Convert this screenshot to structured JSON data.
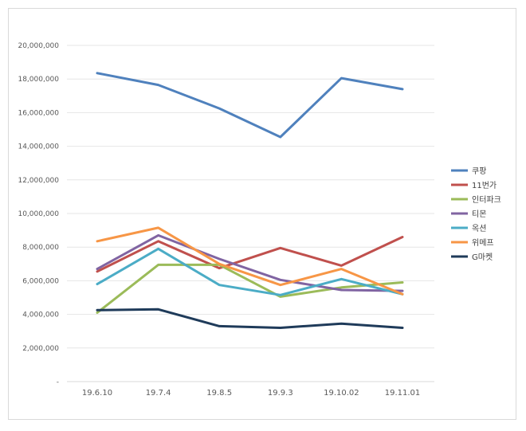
{
  "chart_data": {
    "type": "line",
    "title": "",
    "xlabel": "",
    "ylabel": "",
    "ylim": [
      0,
      20000000
    ],
    "y_ticks": [
      {
        "value": 0,
        "label": "-"
      },
      {
        "value": 2000000,
        "label": "2,000,000"
      },
      {
        "value": 4000000,
        "label": "4,000,000"
      },
      {
        "value": 6000000,
        "label": "6,000,000"
      },
      {
        "value": 8000000,
        "label": "8,000,000"
      },
      {
        "value": 10000000,
        "label": "10,000,000"
      },
      {
        "value": 12000000,
        "label": "12,000,000"
      },
      {
        "value": 14000000,
        "label": "14,000,000"
      },
      {
        "value": 16000000,
        "label": "16,000,000"
      },
      {
        "value": 18000000,
        "label": "18,000,000"
      },
      {
        "value": 20000000,
        "label": "20,000,000"
      }
    ],
    "categories": [
      "19.6.10",
      "19.7.4",
      "19.8.5",
      "19.9.3",
      "19.10.02",
      "19.11.01"
    ],
    "grid": true,
    "legend_position": "right",
    "series": [
      {
        "name": "쿠팡",
        "color": "#4f81bd",
        "values": [
          18350000,
          17650000,
          16250000,
          14550000,
          18050000,
          17400000
        ]
      },
      {
        "name": "11번가",
        "color": "#c0504d",
        "values": [
          6550000,
          8350000,
          6750000,
          7950000,
          6900000,
          8600000
        ]
      },
      {
        "name": "인터파크",
        "color": "#9bbb59",
        "values": [
          4100000,
          6950000,
          6950000,
          5050000,
          5600000,
          5900000
        ]
      },
      {
        "name": "티몬",
        "color": "#8064a2",
        "values": [
          6700000,
          8700000,
          7300000,
          6050000,
          5450000,
          5400000
        ]
      },
      {
        "name": "옥션",
        "color": "#4bacc6",
        "values": [
          5800000,
          7900000,
          5750000,
          5150000,
          6100000,
          5200000
        ]
      },
      {
        "name": "위메프",
        "color": "#f79646",
        "values": [
          8350000,
          9150000,
          7000000,
          5750000,
          6700000,
          5200000
        ]
      },
      {
        "name": "G마켓",
        "color": "#1f3b5a",
        "values": [
          4250000,
          4300000,
          3300000,
          3200000,
          3450000,
          3200000
        ]
      }
    ]
  }
}
